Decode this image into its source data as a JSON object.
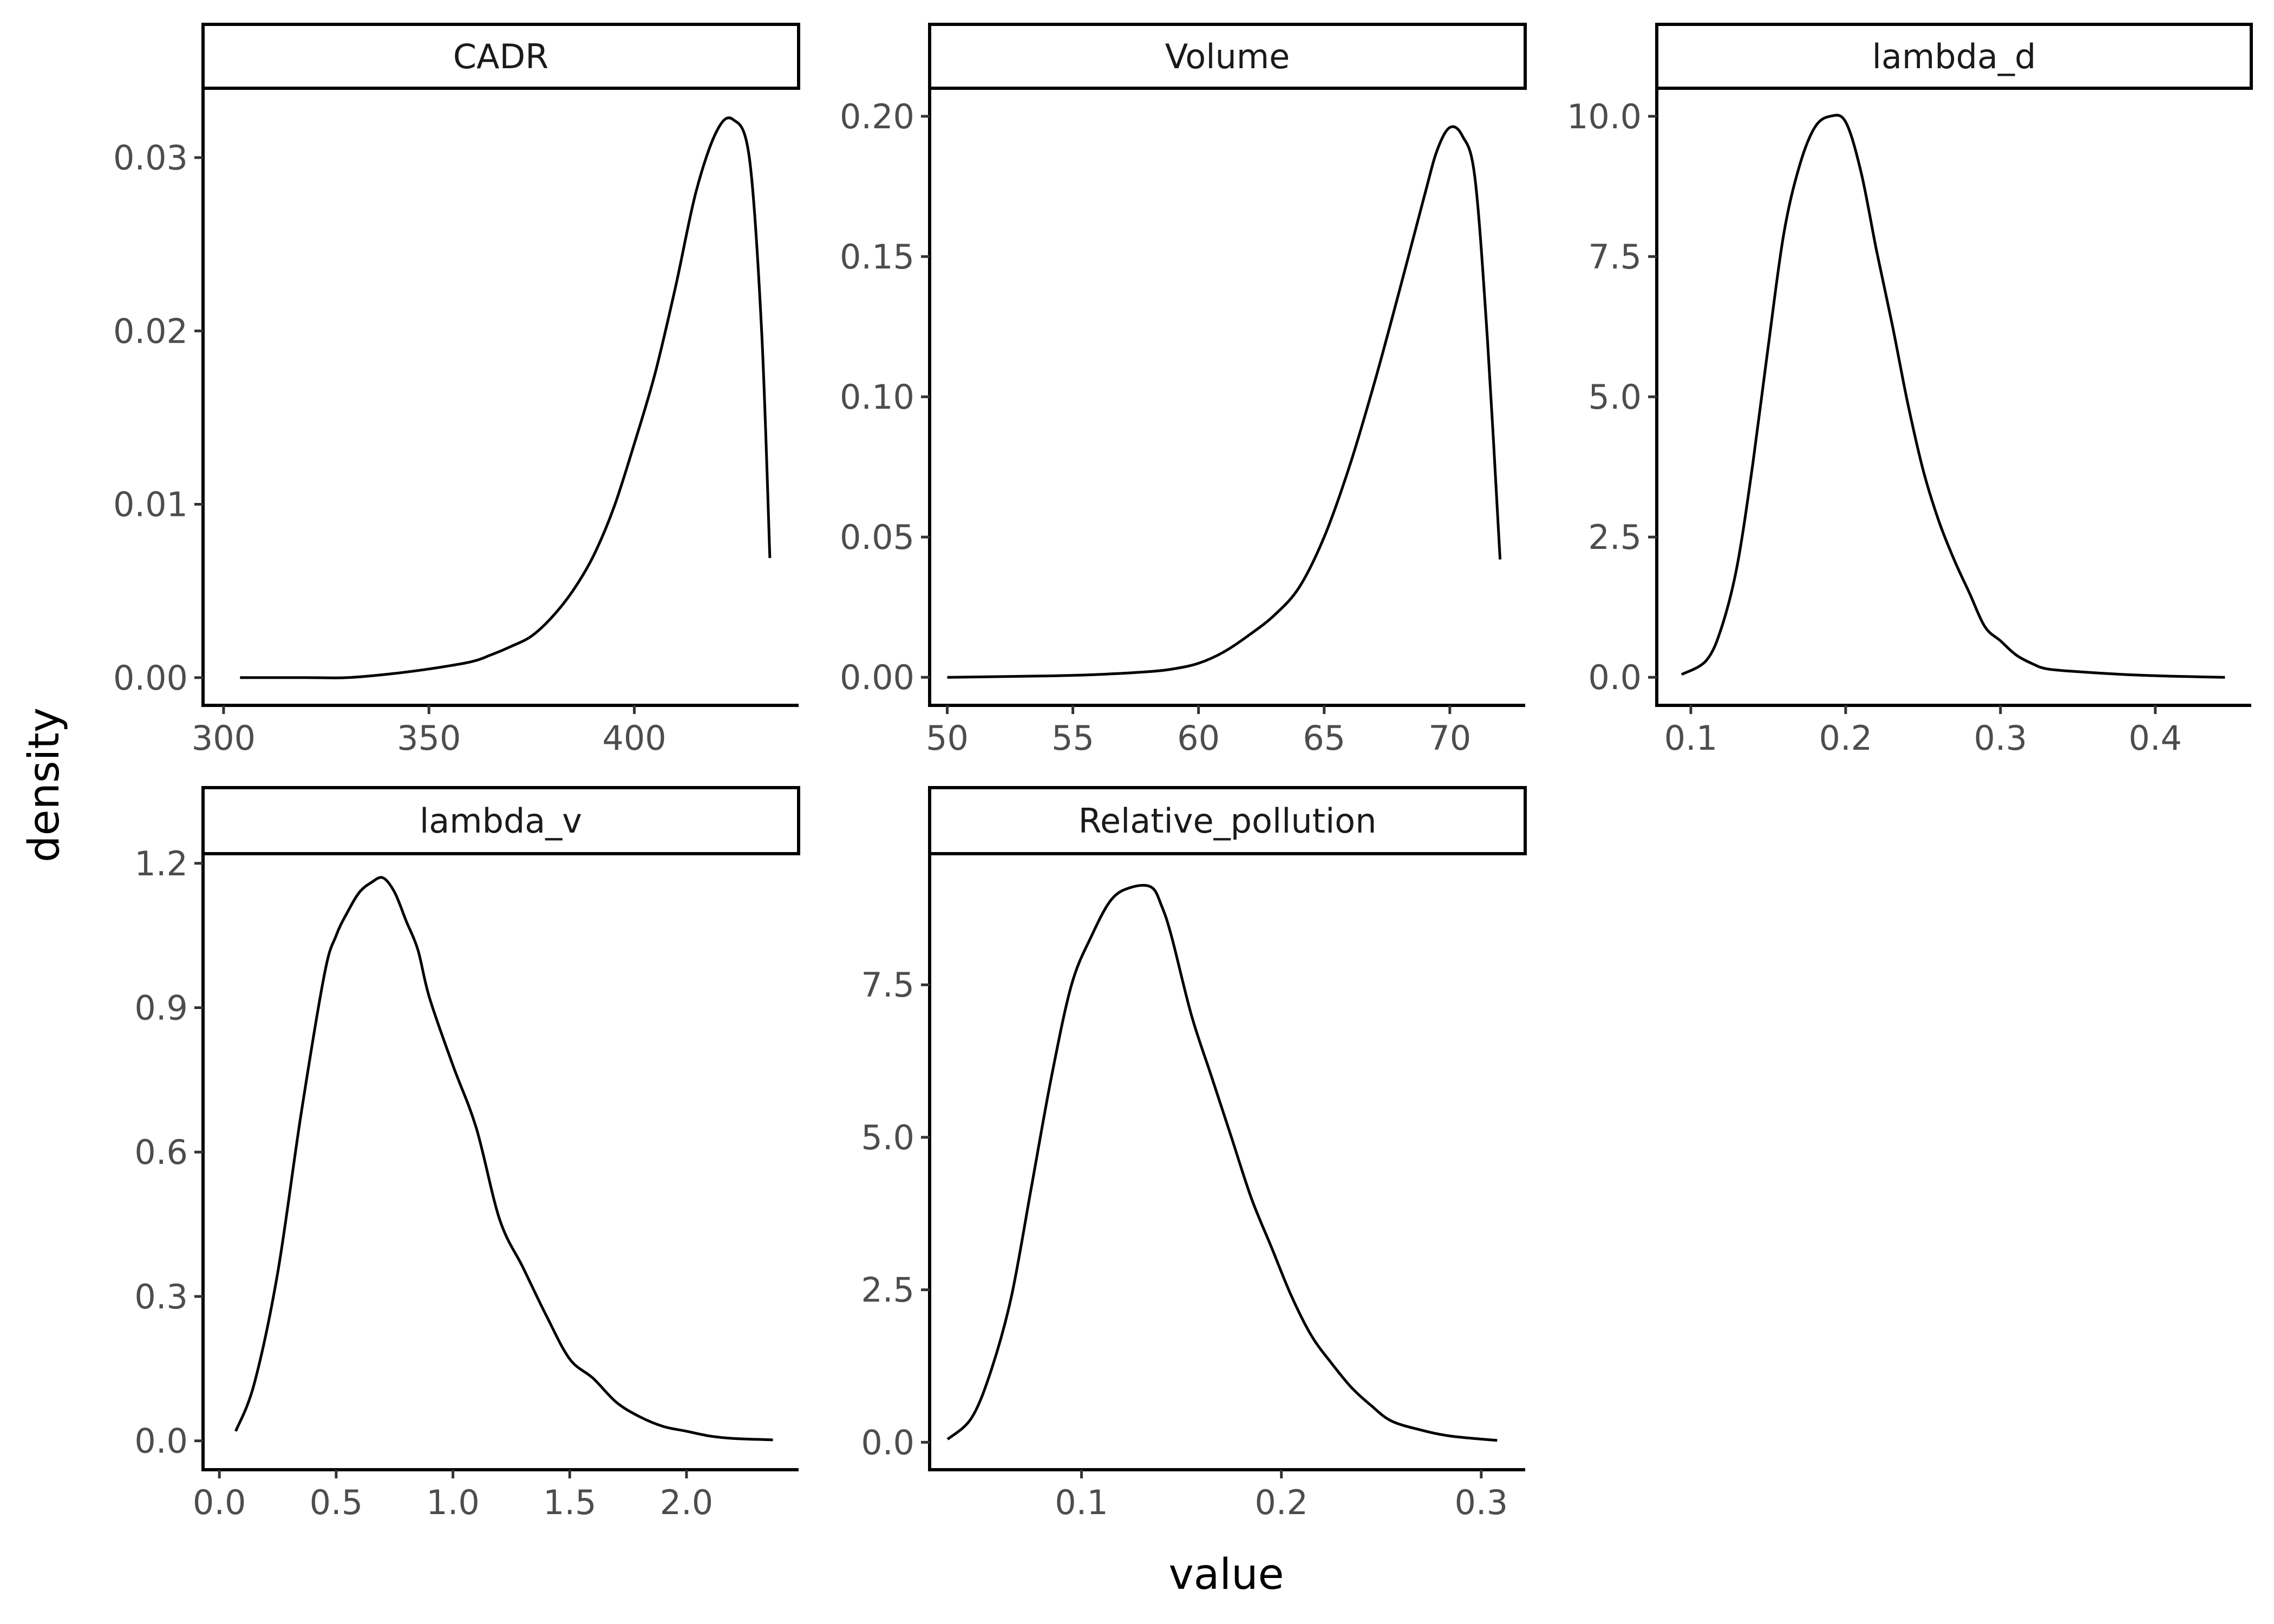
{
  "chart_data": {
    "type": "density-facets",
    "xlabel": "value",
    "ylabel": "density",
    "grid": false,
    "line_color": "#000000",
    "panels": [
      {
        "title": "CADR",
        "xlim": [
          295,
          440
        ],
        "ylim": [
          -0.0016,
          0.034
        ],
        "xticks": [
          300,
          350,
          400
        ],
        "xtick_labels": [
          "300",
          "350",
          "400"
        ],
        "yticks": [
          0,
          0.01,
          0.02,
          0.03
        ],
        "ytick_labels": [
          "0.00",
          "0.01",
          "0.02",
          "0.03"
        ],
        "x": [
          304,
          320,
          330,
          340,
          350,
          360,
          365,
          370,
          375,
          380,
          385,
          390,
          395,
          400,
          405,
          410,
          415,
          420,
          424,
          428,
          431,
          433
        ],
        "y": [
          0,
          0,
          0,
          0.0002,
          0.0005,
          0.0009,
          0.0013,
          0.0018,
          0.0024,
          0.0035,
          0.005,
          0.007,
          0.0098,
          0.0135,
          0.0175,
          0.0225,
          0.028,
          0.0315,
          0.0322,
          0.03,
          0.02,
          0.0069
        ]
      },
      {
        "title": "Volume",
        "xlim": [
          49.3,
          73.0
        ],
        "ylim": [
          -0.01,
          0.21
        ],
        "xticks": [
          50,
          55,
          60,
          65,
          70
        ],
        "xtick_labels": [
          "50",
          "55",
          "60",
          "65",
          "70"
        ],
        "yticks": [
          0,
          0.05,
          0.1,
          0.15,
          0.2
        ],
        "ytick_labels": [
          "0.00",
          "0.05",
          "0.10",
          "0.15",
          "0.20"
        ],
        "x": [
          50,
          54,
          56,
          58,
          59,
          60,
          61,
          62,
          63,
          64,
          65,
          66,
          67,
          68,
          69,
          69.5,
          70,
          70.5,
          71,
          71.5,
          72
        ],
        "y": [
          0,
          0.0005,
          0.001,
          0.002,
          0.003,
          0.005,
          0.009,
          0.015,
          0.022,
          0.032,
          0.05,
          0.075,
          0.105,
          0.138,
          0.172,
          0.188,
          0.196,
          0.193,
          0.178,
          0.12,
          0.042
        ]
      },
      {
        "title": "lambda_d",
        "xlim": [
          0.078,
          0.462
        ],
        "ylim": [
          -0.5,
          10.5
        ],
        "xticks": [
          0.1,
          0.2,
          0.3,
          0.4
        ],
        "xtick_labels": [
          "0.1",
          "0.2",
          "0.3",
          "0.4"
        ],
        "yticks": [
          0,
          2.5,
          5,
          7.5,
          10
        ],
        "ytick_labels": [
          "0.0",
          "2.5",
          "5.0",
          "7.5",
          "10.0"
        ],
        "x": [
          0.094,
          0.11,
          0.12,
          0.13,
          0.14,
          0.15,
          0.16,
          0.17,
          0.18,
          0.19,
          0.2,
          0.21,
          0.22,
          0.23,
          0.24,
          0.25,
          0.26,
          0.27,
          0.28,
          0.29,
          0.3,
          0.31,
          0.32,
          0.33,
          0.35,
          0.38,
          0.41,
          0.445
        ],
        "y": [
          0.05,
          0.3,
          0.9,
          2.0,
          3.8,
          5.9,
          7.9,
          9.1,
          9.8,
          10.0,
          9.9,
          9.0,
          7.6,
          6.3,
          4.9,
          3.7,
          2.8,
          2.1,
          1.5,
          0.9,
          0.65,
          0.4,
          0.25,
          0.15,
          0.1,
          0.05,
          0.02,
          0.0
        ]
      },
      {
        "title": "lambda_v",
        "xlim": [
          -0.07,
          2.48
        ],
        "ylim": [
          -0.06,
          1.22
        ],
        "xticks": [
          0,
          0.5,
          1.0,
          1.5,
          2.0
        ],
        "xtick_labels": [
          "0.0",
          "0.5",
          "1.0",
          "1.5",
          "2.0"
        ],
        "yticks": [
          0,
          0.3,
          0.6,
          0.9,
          1.2
        ],
        "ytick_labels": [
          "0.0",
          "0.3",
          "0.6",
          "0.9",
          "1.2"
        ],
        "x": [
          0.07,
          0.15,
          0.25,
          0.35,
          0.45,
          0.5,
          0.55,
          0.6,
          0.65,
          0.7,
          0.75,
          0.8,
          0.85,
          0.9,
          1.0,
          1.1,
          1.2,
          1.3,
          1.4,
          1.5,
          1.6,
          1.7,
          1.8,
          1.9,
          2.0,
          2.1,
          2.2,
          2.37
        ],
        "y": [
          0.02,
          0.12,
          0.35,
          0.68,
          0.97,
          1.05,
          1.1,
          1.14,
          1.16,
          1.17,
          1.14,
          1.08,
          1.02,
          0.92,
          0.78,
          0.65,
          0.46,
          0.36,
          0.26,
          0.17,
          0.13,
          0.08,
          0.05,
          0.03,
          0.02,
          0.01,
          0.005,
          0.002
        ]
      },
      {
        "title": "Relative_pollution",
        "xlim": [
          0.024,
          0.322
        ],
        "ylim": [
          -0.45,
          9.65
        ],
        "xticks": [
          0.1,
          0.2,
          0.3
        ],
        "xtick_labels": [
          "0.1",
          "0.2",
          "0.3"
        ],
        "yticks": [
          0,
          2.5,
          5,
          7.5
        ],
        "ytick_labels": [
          "0.0",
          "2.5",
          "5.0",
          "7.5"
        ],
        "x": [
          0.033,
          0.045,
          0.055,
          0.065,
          0.075,
          0.085,
          0.095,
          0.105,
          0.115,
          0.125,
          0.135,
          0.14,
          0.145,
          0.155,
          0.165,
          0.175,
          0.185,
          0.195,
          0.205,
          0.215,
          0.225,
          0.235,
          0.245,
          0.255,
          0.27,
          0.285,
          0.308
        ],
        "y": [
          0.05,
          0.4,
          1.2,
          2.4,
          4.2,
          6.0,
          7.5,
          8.3,
          8.9,
          9.1,
          9.1,
          8.8,
          8.3,
          7.0,
          6.0,
          5.0,
          4.0,
          3.2,
          2.4,
          1.75,
          1.3,
          0.9,
          0.6,
          0.35,
          0.2,
          0.1,
          0.03
        ]
      }
    ]
  }
}
